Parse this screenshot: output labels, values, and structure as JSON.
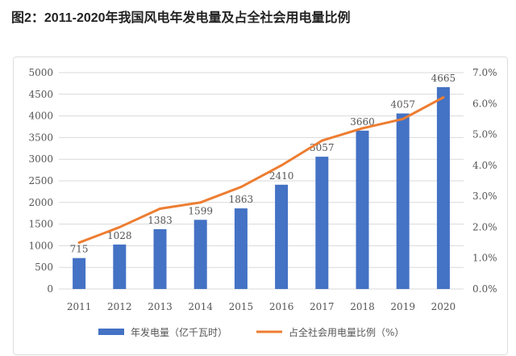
{
  "title": "图2：2011-2020年我国风电年发电量及占全社会用电量比例",
  "chart_data": {
    "type": "bar",
    "categories": [
      "2011",
      "2012",
      "2013",
      "2014",
      "2015",
      "2016",
      "2017",
      "2018",
      "2019",
      "2020"
    ],
    "series": [
      {
        "name": "年发电量（亿千瓦时）",
        "type": "bar",
        "axis": "left",
        "color": "#4472C4",
        "values": [
          715,
          1028,
          1383,
          1599,
          1863,
          2410,
          3057,
          3660,
          4057,
          4665
        ]
      },
      {
        "name": "占全社会用电量比例（%）",
        "type": "line",
        "axis": "right",
        "color": "#ED7D31",
        "values": [
          1.5,
          2.0,
          2.6,
          2.8,
          3.3,
          4.0,
          4.8,
          5.2,
          5.5,
          6.2
        ]
      }
    ],
    "ylim": [
      0,
      5000
    ],
    "yticks": [
      "0",
      "500",
      "1000",
      "1500",
      "2000",
      "2500",
      "3000",
      "3500",
      "4000",
      "4500",
      "5000"
    ],
    "y2lim": [
      0,
      7
    ],
    "y2ticks": [
      "0.0%",
      "1.0%",
      "2.0%",
      "3.0%",
      "4.0%",
      "5.0%",
      "6.0%",
      "7.0%"
    ],
    "grid": true,
    "legend": "bottom"
  }
}
